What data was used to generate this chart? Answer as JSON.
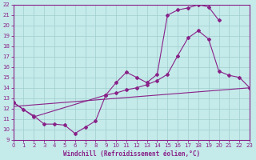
{
  "xlabel": "Windchill (Refroidissement éolien,°C)",
  "xlim": [
    0,
    23
  ],
  "ylim": [
    9,
    22
  ],
  "xticks": [
    0,
    1,
    2,
    3,
    4,
    5,
    6,
    7,
    8,
    9,
    10,
    11,
    12,
    13,
    14,
    15,
    16,
    17,
    18,
    19,
    20,
    21,
    22,
    23
  ],
  "yticks": [
    9,
    10,
    11,
    12,
    13,
    14,
    15,
    16,
    17,
    18,
    19,
    20,
    21,
    22
  ],
  "bg_color": "#c5eaea",
  "grid_color": "#9fcece",
  "line_color": "#882288",
  "curve1_x": [
    0,
    1,
    2,
    3,
    4,
    5,
    6,
    7,
    8,
    9
  ],
  "curve1_y": [
    12.6,
    11.9,
    11.3,
    10.5,
    10.5,
    10.4,
    9.6,
    10.2,
    10.8,
    13.3
  ],
  "curve2_x": [
    0,
    2,
    9,
    10,
    11,
    12,
    13,
    14,
    15,
    16,
    17,
    18,
    19,
    20
  ],
  "curve2_y": [
    12.6,
    11.2,
    13.3,
    14.5,
    15.5,
    15.0,
    14.5,
    15.3,
    21.0,
    21.5,
    21.7,
    22.0,
    21.8,
    20.5
  ],
  "curve3_x": [
    9,
    10,
    11,
    12,
    13,
    14,
    15,
    16,
    17,
    18,
    19,
    20,
    21,
    22,
    23
  ],
  "curve3_y": [
    13.3,
    13.5,
    13.8,
    14.0,
    14.3,
    14.7,
    15.3,
    17.1,
    18.8,
    19.5,
    18.7,
    15.6,
    15.2,
    15.0,
    14.0
  ],
  "line4_x": [
    0,
    23
  ],
  "line4_y": [
    12.2,
    14.0
  ]
}
